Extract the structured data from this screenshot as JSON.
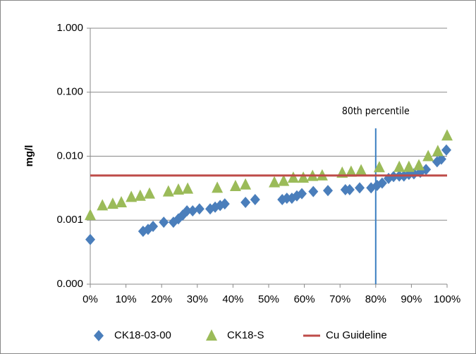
{
  "chart_data": {
    "type": "scatter",
    "y_label": "mg/l",
    "annotation": "80th percentile",
    "annotation_x": 80,
    "annotation_color": "#3a7fc1",
    "log_y": true,
    "xlim": [
      0,
      100
    ],
    "xticks": [
      {
        "value": 0,
        "label": "0%"
      },
      {
        "value": 10,
        "label": "10%"
      },
      {
        "value": 20,
        "label": "20%"
      },
      {
        "value": 30,
        "label": "30%"
      },
      {
        "value": 40,
        "label": "40%"
      },
      {
        "value": 50,
        "label": "50%"
      },
      {
        "value": 60,
        "label": "60%"
      },
      {
        "value": 70,
        "label": "70%"
      },
      {
        "value": 80,
        "label": "80%"
      },
      {
        "value": 90,
        "label": "90%"
      },
      {
        "value": 100,
        "label": "100%"
      }
    ],
    "ylim": [
      0.0001,
      1
    ],
    "yticks": [
      {
        "value": 0.0001,
        "label": "0.000"
      },
      0.001,
      {
        "value": 0.01,
        "label": "0.010"
      },
      {
        "value": 0.1,
        "label": "0.100"
      },
      {
        "value": 1,
        "label": "1.000"
      }
    ],
    "grid": true,
    "legend": "bottom",
    "series": [
      {
        "name": "CK18-03-00",
        "color": "#4a7ebb",
        "marker": "diamond",
        "x": [
          0,
          14.8,
          16.2,
          17.6,
          20.6,
          23.3,
          24.7,
          25.9,
          27.1,
          28.7,
          30.6,
          33.6,
          35,
          36.4,
          37.7,
          43.5,
          46.2,
          53.8,
          55.1,
          56.5,
          57.9,
          59.3,
          62.5,
          66.6,
          71.5,
          72.7,
          75.5,
          78.7,
          80.4,
          81.8,
          83.6,
          85,
          86.6,
          87.9,
          89.3,
          90.7,
          92.5,
          94.1,
          97.2,
          98.4,
          99.8
        ],
        "values": [
          0.0005,
          0.00067,
          0.00072,
          0.0008,
          0.00093,
          0.00093,
          0.00105,
          0.0012,
          0.0014,
          0.0014,
          0.0015,
          0.0015,
          0.0016,
          0.0017,
          0.0018,
          0.0019,
          0.0021,
          0.0021,
          0.0022,
          0.0022,
          0.0024,
          0.0026,
          0.0028,
          0.0029,
          0.003,
          0.003,
          0.0032,
          0.0032,
          0.0035,
          0.0038,
          0.0045,
          0.0048,
          0.0049,
          0.0049,
          0.0052,
          0.0053,
          0.0056,
          0.0062,
          0.0082,
          0.009,
          0.0125
        ]
      },
      {
        "name": "CK18-S",
        "color": "#9bbb59",
        "marker": "triangle",
        "x": [
          0,
          3.4,
          6.3,
          8.7,
          11.5,
          14,
          16.6,
          21.9,
          24.7,
          27.3,
          35.6,
          40.7,
          43.5,
          51.6,
          54.2,
          56.9,
          59.7,
          62.3,
          65,
          70.6,
          73.1,
          75.9,
          81,
          86.6,
          89.3,
          92.1,
          94.7,
          97.4,
          100
        ],
        "values": [
          0.0012,
          0.0017,
          0.0018,
          0.0019,
          0.0023,
          0.0024,
          0.0026,
          0.0028,
          0.003,
          0.0031,
          0.0032,
          0.0034,
          0.0036,
          0.0039,
          0.0041,
          0.0046,
          0.0046,
          0.0049,
          0.005,
          0.0055,
          0.0057,
          0.006,
          0.0067,
          0.0068,
          0.0068,
          0.0072,
          0.01,
          0.012,
          0.021
        ]
      },
      {
        "name": "Cu Guideline",
        "color": "#be4b48",
        "marker": "line",
        "x": [
          0,
          100
        ],
        "values": [
          0.005,
          0.005
        ]
      }
    ]
  }
}
